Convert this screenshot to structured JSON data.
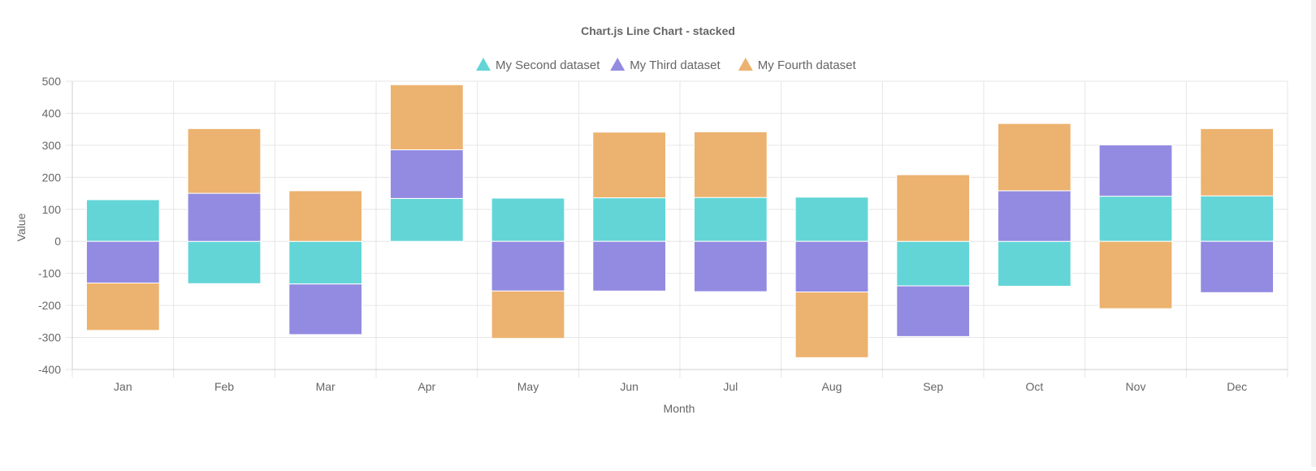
{
  "chart_data": {
    "type": "bar",
    "stacked": true,
    "title": "Chart.js Line Chart - stacked",
    "xlabel": "Month",
    "ylabel": "Value",
    "categories": [
      "Jan",
      "Feb",
      "Mar",
      "Apr",
      "May",
      "Jun",
      "Jul",
      "Aug",
      "Sep",
      "Oct",
      "Nov",
      "Dec"
    ],
    "ylim": [
      -400,
      500
    ],
    "yticks": [
      500,
      400,
      300,
      200,
      100,
      0,
      -100,
      -200,
      -300,
      -400
    ],
    "grid": true,
    "legend_position": "top",
    "series": [
      {
        "name": "My Second dataset",
        "color": "#63d5d7",
        "values": [
          130,
          -132,
          -133,
          134,
          135,
          136,
          137,
          138,
          -139,
          -140,
          141,
          142
        ]
      },
      {
        "name": "My Third dataset",
        "color": "#938be1",
        "values": [
          -130,
          150,
          -158,
          152,
          -155,
          -155,
          -157,
          -158,
          -158,
          158,
          160,
          -160
        ]
      },
      {
        "name": "My Fourth dataset",
        "color": "#ecb26f",
        "values": [
          -148,
          202,
          158,
          203,
          -148,
          205,
          205,
          -205,
          208,
          210,
          -210,
          210
        ]
      }
    ]
  }
}
